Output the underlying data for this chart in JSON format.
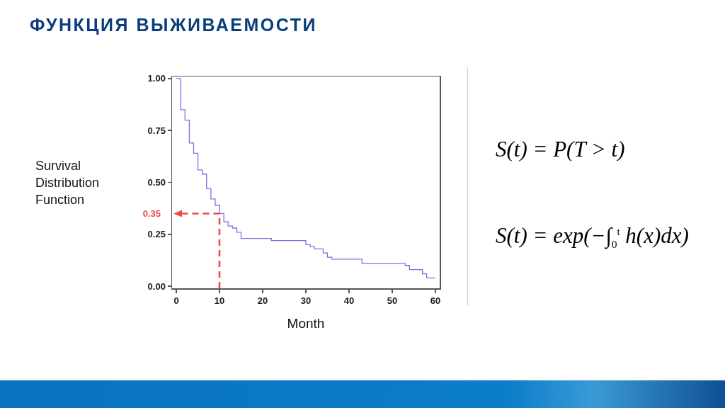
{
  "chart_data": {
    "type": "step",
    "title": "ФУНКЦИЯ ВЫЖИВАЕМОСТИ",
    "xlabel": "Month",
    "ylabel": "Survival Distribution Function",
    "xlim": [
      -1,
      61
    ],
    "xticks": [
      0,
      10,
      20,
      30,
      40,
      50,
      60
    ],
    "ylim": [
      -0.01,
      1.01
    ],
    "yticks": [
      {
        "value": 0,
        "label": "0.00"
      },
      {
        "value": 0.25,
        "label": "0.25"
      },
      {
        "value": 0.5,
        "label": "0.50"
      },
      {
        "value": 0.75,
        "label": "0.75"
      },
      {
        "value": 1,
        "label": "1.00"
      }
    ],
    "series": [
      {
        "color": "#7474e6",
        "x": [
          0,
          1,
          2,
          3,
          4,
          5,
          6,
          7,
          8,
          9,
          10,
          11,
          12,
          13,
          14,
          15,
          22,
          30,
          31,
          32,
          34,
          35,
          36,
          43,
          53,
          54,
          57,
          58,
          60
        ],
        "values": [
          1.0,
          0.85,
          0.8,
          0.69,
          0.64,
          0.56,
          0.54,
          0.47,
          0.42,
          0.39,
          0.35,
          0.31,
          0.29,
          0.28,
          0.26,
          0.23,
          0.22,
          0.2,
          0.19,
          0.18,
          0.16,
          0.14,
          0.13,
          0.11,
          0.1,
          0.08,
          0.06,
          0.04,
          0.04
        ]
      }
    ],
    "annotations": [
      "0.35",
      "S(t) = P(T > t)",
      "S(t) = exp(−∫$_{0}$$^{t}$ h(x)dx)"
    ]
  }
}
